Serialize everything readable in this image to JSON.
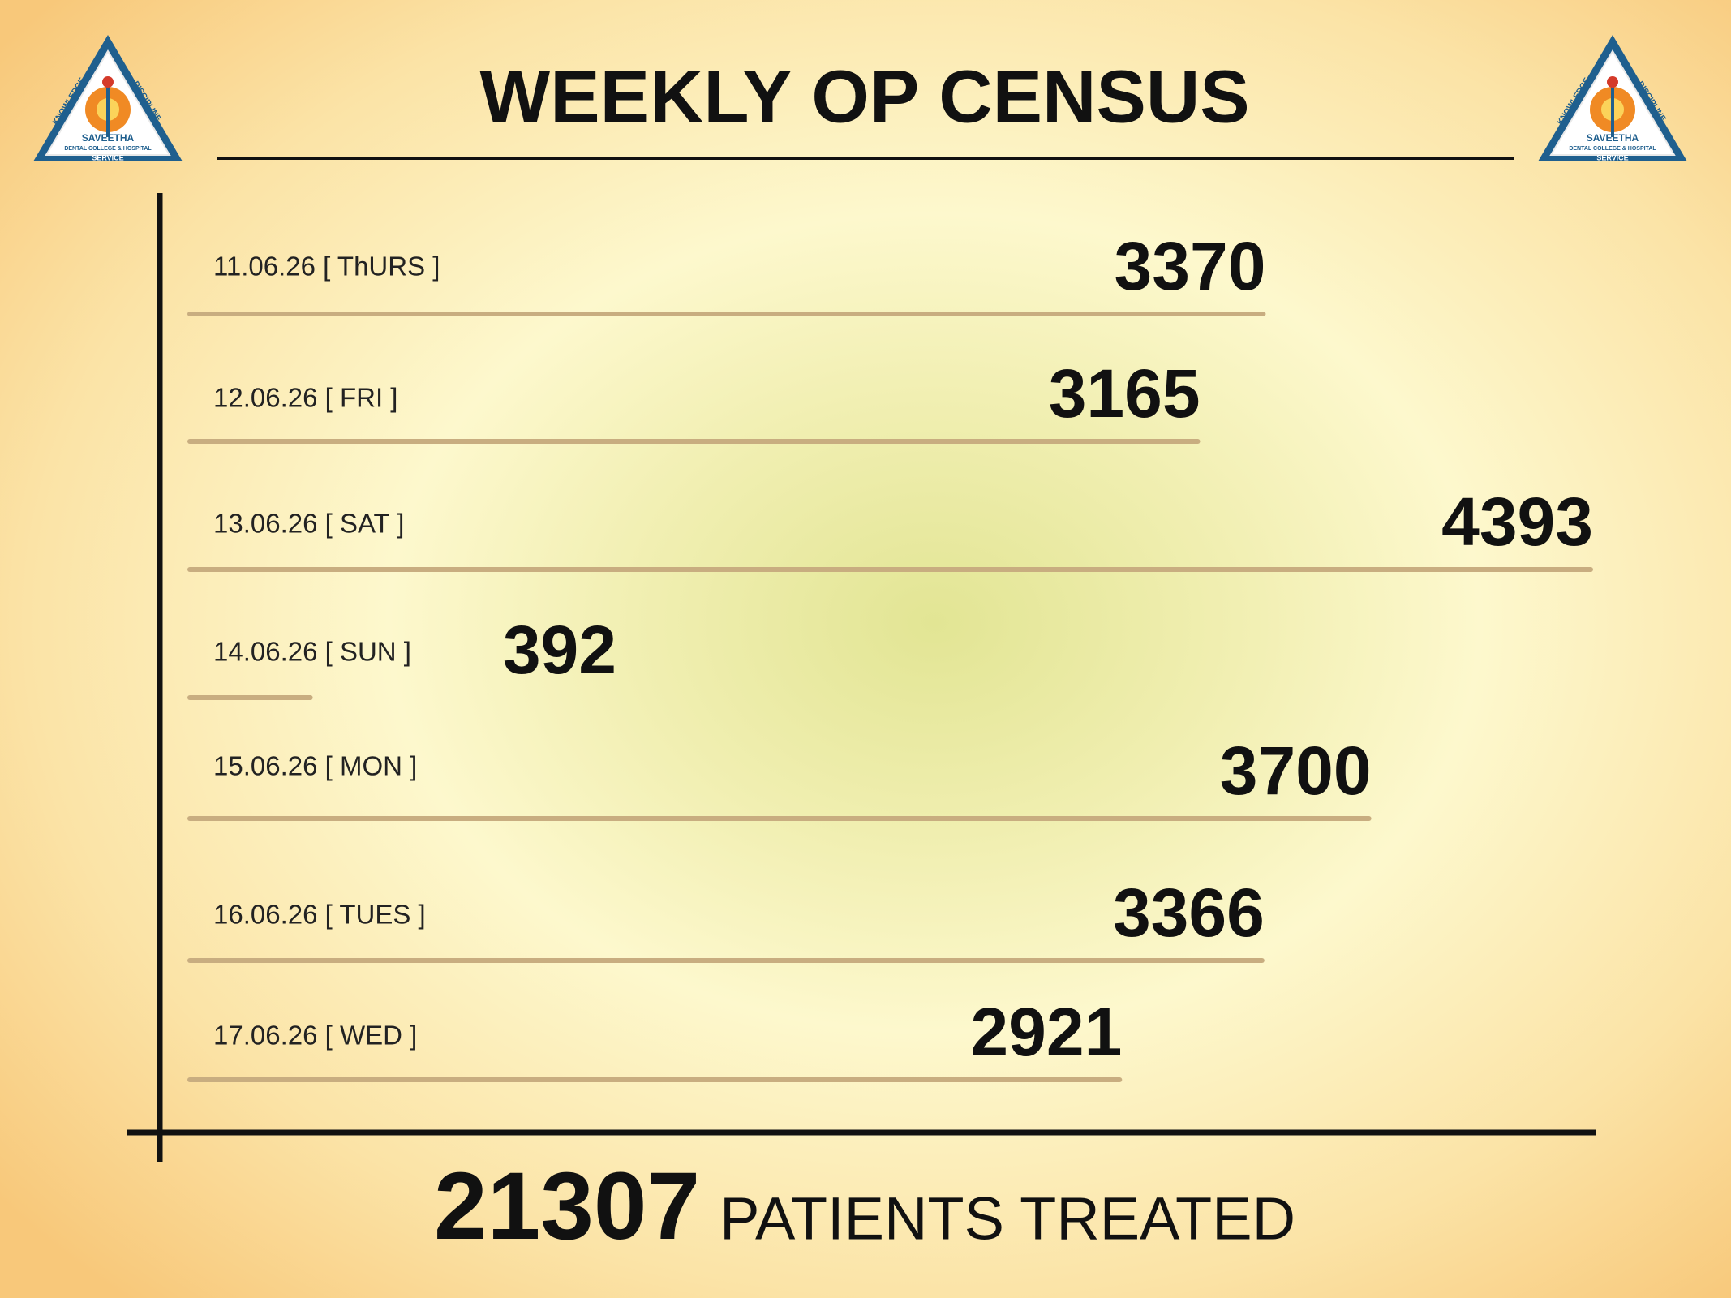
{
  "chart_data": {
    "type": "bar",
    "orientation": "horizontal",
    "title": "WEEKLY OP CENSUS",
    "categories": [
      "11.06.26 [ ThURS ]",
      "12.06.26 [ FRI ]",
      "13.06.26 [ SAT ]",
      "14.06.26 [ SUN ]",
      "15.06.26 [ MON ]",
      "16.06.26 [ TUES ]",
      "17.06.26 [ WED ]"
    ],
    "values": [
      3370,
      3165,
      4393,
      392,
      3700,
      3366,
      2921
    ],
    "color": "#c8ad80",
    "total": 21307,
    "total_label": "PATIENTS TREATED"
  },
  "logo": {
    "top_left": "KNOWLEDGE",
    "top_right": "DISCIPLINE",
    "name": "SAVEETHA",
    "subtitle": "DENTAL COLLEGE & HOSPITAL",
    "bottom": "SERVICE"
  }
}
